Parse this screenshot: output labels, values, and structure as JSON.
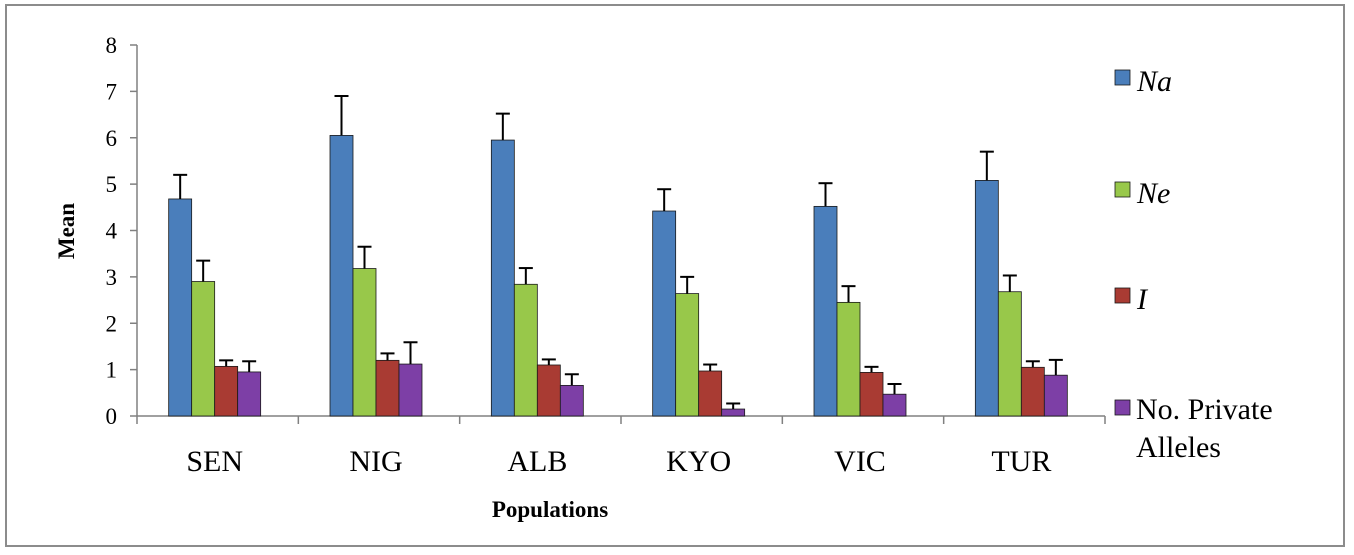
{
  "chart_data": {
    "type": "bar",
    "xlabel": "Populations",
    "ylabel": "Mean",
    "ylim": [
      0,
      8
    ],
    "yticks": [
      0,
      1,
      2,
      3,
      4,
      5,
      6,
      7,
      8
    ],
    "categories": [
      "SEN",
      "NIG",
      "ALB",
      "KYO",
      "VIC",
      "TUR"
    ],
    "series": [
      {
        "name": "Na",
        "italic": true,
        "color": "#4a7ebb",
        "values": [
          4.68,
          6.05,
          5.95,
          4.42,
          4.52,
          5.08
        ],
        "errors": [
          0.52,
          0.85,
          0.57,
          0.47,
          0.5,
          0.62
        ]
      },
      {
        "name": "Ne",
        "italic": true,
        "color": "#98c84a",
        "values": [
          2.9,
          3.18,
          2.84,
          2.64,
          2.45,
          2.68
        ],
        "errors": [
          0.45,
          0.47,
          0.35,
          0.36,
          0.35,
          0.35
        ]
      },
      {
        "name": "I",
        "italic": true,
        "color": "#a93b33",
        "values": [
          1.07,
          1.2,
          1.1,
          0.97,
          0.94,
          1.05
        ],
        "errors": [
          0.13,
          0.15,
          0.12,
          0.14,
          0.12,
          0.13
        ]
      },
      {
        "name": "No. Private Alleles",
        "italic": false,
        "color": "#7d3fa6",
        "values": [
          0.95,
          1.12,
          0.66,
          0.15,
          0.47,
          0.88
        ],
        "errors": [
          0.23,
          0.47,
          0.24,
          0.12,
          0.22,
          0.33
        ]
      }
    ],
    "legend": {
      "position": "right"
    },
    "grid": false
  }
}
